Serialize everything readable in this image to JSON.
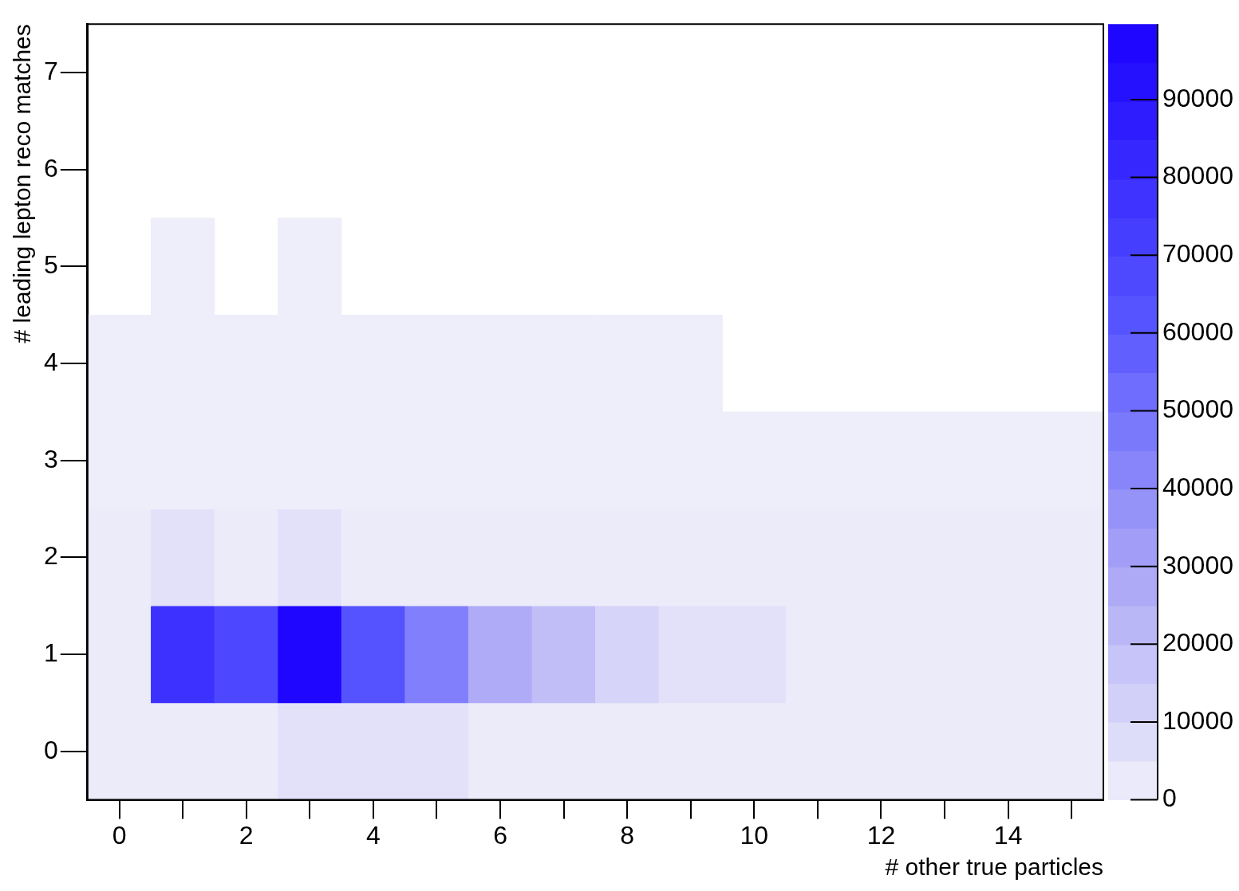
{
  "chart_data": {
    "type": "heatmap",
    "xlabel": "# other true particles",
    "ylabel": "# leading lepton reco matches",
    "categories": [
      "0",
      null,
      "2",
      null,
      "4",
      null,
      "6",
      null,
      "8",
      null,
      "10",
      null,
      "12",
      null,
      "14",
      null
    ],
    "y_categories": [
      "7",
      "6",
      "5",
      "4",
      "3",
      "2",
      "1",
      "0"
    ],
    "cells": [
      [
        null,
        null,
        null,
        null,
        null,
        null,
        null,
        null,
        null,
        null,
        null,
        null,
        null,
        null,
        null,
        null
      ],
      [
        null,
        null,
        null,
        null,
        null,
        null,
        null,
        null,
        null,
        null,
        null,
        null,
        null,
        null,
        null,
        null
      ],
      [
        null,
        1000,
        null,
        1000,
        null,
        null,
        null,
        null,
        null,
        null,
        null,
        null,
        null,
        null,
        null,
        null
      ],
      [
        1000,
        1000,
        1000,
        1000,
        1000,
        1000,
        1000,
        1000,
        1000,
        1000,
        null,
        null,
        null,
        null,
        null,
        null
      ],
      [
        1000,
        1000,
        1000,
        1000,
        1000,
        1000,
        1000,
        1000,
        1000,
        1000,
        1000,
        1000,
        1000,
        1000,
        1000,
        1000
      ],
      [
        2000,
        6000,
        2000,
        6000,
        2000,
        2000,
        2000,
        2000,
        2000,
        2000,
        2000,
        2000,
        2000,
        2000,
        2000,
        2000
      ],
      [
        2000,
        78000,
        68000,
        97000,
        63000,
        45000,
        27000,
        20000,
        11000,
        6000,
        6000,
        2000,
        2000,
        2000,
        2000,
        2000
      ],
      [
        2000,
        2000,
        2000,
        6000,
        6000,
        6000,
        2000,
        2000,
        2000,
        2000,
        2000,
        2000,
        2000,
        2000,
        2000,
        2000
      ]
    ],
    "clim": [
      0,
      99700
    ],
    "cticks": [
      0,
      10000,
      20000,
      30000,
      40000,
      50000,
      60000,
      70000,
      80000,
      90000
    ]
  }
}
